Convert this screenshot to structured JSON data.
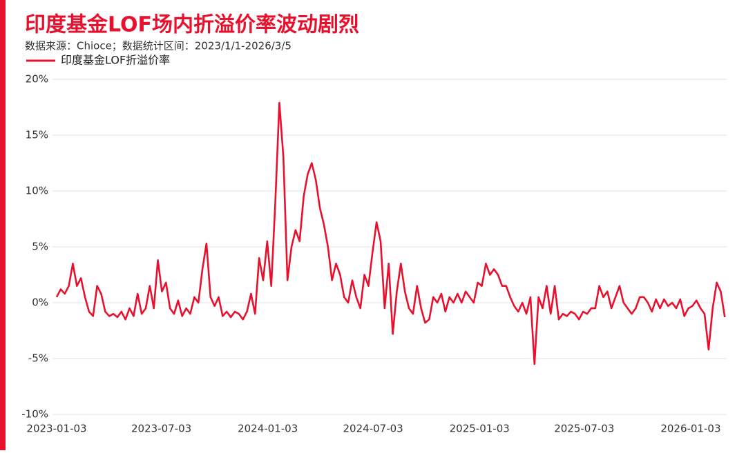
{
  "chart_data": {
    "type": "line",
    "title": "印度基金LOF场内折溢价率波动剧烈",
    "subtitle": "数据来源：Chioce；数据统计区间：2023/1/1-2026/3/5",
    "x": [
      "2023-01-03",
      "2023-01-10",
      "2023-01-17",
      "2023-01-24",
      "2023-01-31",
      "2023-02-07",
      "2023-02-14",
      "2023-02-21",
      "2023-02-28",
      "2023-03-07",
      "2023-03-14",
      "2023-03-21",
      "2023-03-28",
      "2023-04-04",
      "2023-04-11",
      "2023-04-18",
      "2023-04-25",
      "2023-05-02",
      "2023-05-09",
      "2023-05-16",
      "2023-05-23",
      "2023-05-30",
      "2023-06-06",
      "2023-06-13",
      "2023-06-20",
      "2023-06-27",
      "2023-07-04",
      "2023-07-11",
      "2023-07-18",
      "2023-07-25",
      "2023-08-01",
      "2023-08-08",
      "2023-08-15",
      "2023-08-22",
      "2023-08-29",
      "2023-09-05",
      "2023-09-12",
      "2023-09-19",
      "2023-09-26",
      "2023-10-03",
      "2023-10-10",
      "2023-10-17",
      "2023-10-24",
      "2023-10-31",
      "2023-11-07",
      "2023-11-14",
      "2023-11-21",
      "2023-11-28",
      "2023-12-05",
      "2023-12-12",
      "2023-12-19",
      "2023-12-26",
      "2024-01-02",
      "2024-01-09",
      "2024-01-16",
      "2024-01-23",
      "2024-01-30",
      "2024-02-06",
      "2024-02-13",
      "2024-02-20",
      "2024-02-27",
      "2024-03-05",
      "2024-03-12",
      "2024-03-19",
      "2024-03-26",
      "2024-04-02",
      "2024-04-09",
      "2024-04-16",
      "2024-04-23",
      "2024-04-30",
      "2024-05-07",
      "2024-05-14",
      "2024-05-21",
      "2024-05-28",
      "2024-06-04",
      "2024-06-11",
      "2024-06-18",
      "2024-06-25",
      "2024-07-02",
      "2024-07-09",
      "2024-07-16",
      "2024-07-23",
      "2024-07-30",
      "2024-08-06",
      "2024-08-13",
      "2024-08-20",
      "2024-08-27",
      "2024-09-03",
      "2024-09-10",
      "2024-09-17",
      "2024-09-24",
      "2024-10-01",
      "2024-10-08",
      "2024-10-15",
      "2024-10-22",
      "2024-10-29",
      "2024-11-05",
      "2024-11-12",
      "2024-11-19",
      "2024-11-26",
      "2024-12-03",
      "2024-12-10",
      "2024-12-17",
      "2024-12-24",
      "2024-12-31",
      "2025-01-07",
      "2025-01-14",
      "2025-01-21",
      "2025-01-28",
      "2025-02-04",
      "2025-02-11",
      "2025-02-18",
      "2025-02-25",
      "2025-03-04",
      "2025-03-11",
      "2025-03-18",
      "2025-03-25",
      "2025-04-01",
      "2025-04-08",
      "2025-04-15",
      "2025-04-22",
      "2025-04-29",
      "2025-05-06",
      "2025-05-13",
      "2025-05-20",
      "2025-05-27",
      "2025-06-03",
      "2025-06-10",
      "2025-06-17",
      "2025-06-24",
      "2025-07-01",
      "2025-07-08",
      "2025-07-15",
      "2025-07-22",
      "2025-07-29",
      "2025-08-05",
      "2025-08-12",
      "2025-08-19",
      "2025-08-26",
      "2025-09-02",
      "2025-09-09",
      "2025-09-16",
      "2025-09-23",
      "2025-09-30",
      "2025-10-07",
      "2025-10-14",
      "2025-10-21",
      "2025-10-28",
      "2025-11-04",
      "2025-11-11",
      "2025-11-18",
      "2025-11-25",
      "2025-12-02",
      "2025-12-09",
      "2025-12-16",
      "2025-12-23",
      "2025-12-30",
      "2026-01-06",
      "2026-01-13",
      "2026-01-20",
      "2026-01-27",
      "2026-02-03",
      "2026-02-10",
      "2026-02-17",
      "2026-02-24",
      "2026-03-03"
    ],
    "series": [
      {
        "name": "印度基金LOF折溢价率",
        "color": "#e8112d",
        "values": [
          0.5,
          1.2,
          0.8,
          1.5,
          3.5,
          1.5,
          2.2,
          0.5,
          -0.8,
          -1.2,
          1.5,
          0.8,
          -0.8,
          -1.2,
          -1.0,
          -1.3,
          -0.8,
          -1.5,
          -0.5,
          -1.2,
          0.8,
          -1.0,
          -0.5,
          1.5,
          -0.5,
          3.8,
          1.0,
          1.8,
          -0.5,
          -1.0,
          0.2,
          -1.2,
          -0.5,
          -1.0,
          0.5,
          0.0,
          3.0,
          5.3,
          0.5,
          -0.3,
          0.5,
          -1.2,
          -0.8,
          -1.3,
          -0.8,
          -1.0,
          -1.5,
          -0.8,
          0.8,
          -1.0,
          4.0,
          2.0,
          5.5,
          1.5,
          9.0,
          17.9,
          13.0,
          2.0,
          5.0,
          6.5,
          5.5,
          9.5,
          11.5,
          12.5,
          11.0,
          8.5,
          7.0,
          5.0,
          2.0,
          3.5,
          2.5,
          0.5,
          0.0,
          2.0,
          0.5,
          -0.5,
          2.5,
          1.5,
          4.5,
          7.2,
          5.5,
          -0.5,
          3.5,
          -2.8,
          1.0,
          3.5,
          1.0,
          -0.5,
          -1.0,
          1.5,
          -0.5,
          -1.8,
          -1.5,
          0.5,
          0.0,
          0.8,
          -0.8,
          0.5,
          0.0,
          0.8,
          0.0,
          1.0,
          0.5,
          0.0,
          1.8,
          1.5,
          3.5,
          2.5,
          3.0,
          2.5,
          1.5,
          1.5,
          0.5,
          -0.3,
          -0.8,
          0.0,
          -1.0,
          0.5,
          -5.5,
          0.5,
          -0.5,
          1.5,
          -1.0,
          1.5,
          -1.5,
          -1.0,
          -1.2,
          -0.8,
          -1.0,
          -1.5,
          -0.8,
          -1.0,
          -0.5,
          -0.5,
          1.5,
          0.5,
          1.0,
          -0.5,
          0.5,
          1.5,
          0.0,
          -0.5,
          -1.0,
          -0.5,
          0.5,
          0.5,
          0.0,
          -0.8,
          0.3,
          -0.5,
          0.3,
          -0.3,
          0.0,
          -0.5,
          0.3,
          -1.2,
          -0.5,
          -0.3,
          0.2,
          -0.5,
          -1.0,
          -4.2,
          -0.5,
          1.8,
          1.0,
          -1.3
        ]
      }
    ],
    "xlim": [
      "2023-01-03",
      "2026-03-05"
    ],
    "xticks": [
      "2023-01-03",
      "2023-07-03",
      "2024-01-03",
      "2024-07-03",
      "2025-01-03",
      "2025-07-03",
      "2026-01-03"
    ],
    "ylim": [
      -10,
      20
    ],
    "yticks": [
      {
        "value": -10,
        "label": "-10%"
      },
      {
        "value": -5,
        "label": "-5%"
      },
      {
        "value": 0,
        "label": "0%"
      },
      {
        "value": 5,
        "label": "5%"
      },
      {
        "value": 10,
        "label": "10%"
      },
      {
        "value": 15,
        "label": "15%"
      },
      {
        "value": 20,
        "label": "20%"
      }
    ],
    "grid": true,
    "legend": "top-left"
  }
}
